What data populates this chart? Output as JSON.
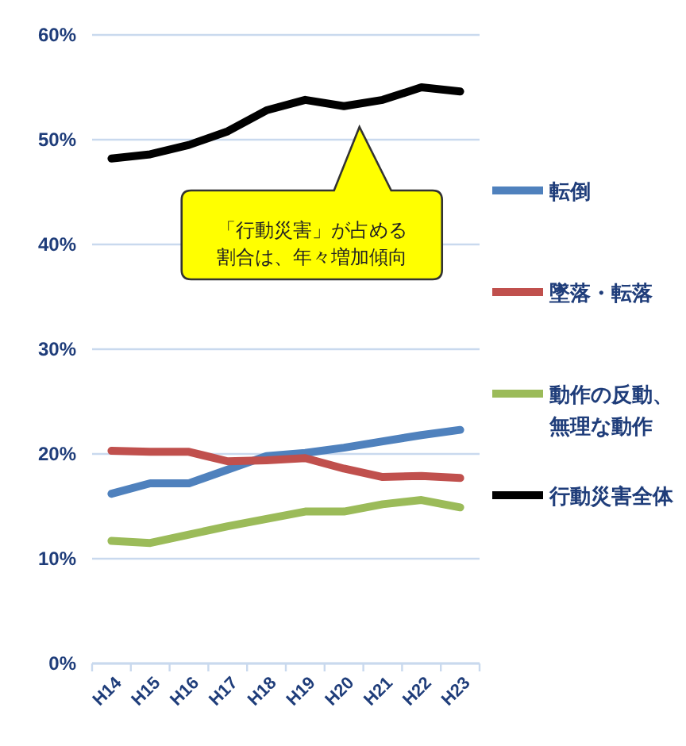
{
  "chart_data": {
    "type": "line",
    "categories": [
      "H14",
      "H15",
      "H16",
      "H17",
      "H18",
      "H19",
      "H20",
      "H21",
      "H22",
      "H23"
    ],
    "series": [
      {
        "name": "転倒",
        "color": "#4f81bd",
        "values": [
          16.2,
          17.2,
          17.2,
          18.5,
          19.8,
          20.1,
          20.6,
          21.2,
          21.8,
          22.3
        ]
      },
      {
        "name": "墜落・転落",
        "color": "#c0504d",
        "values": [
          20.3,
          20.2,
          20.2,
          19.3,
          19.4,
          19.6,
          18.6,
          17.8,
          17.9,
          17.7
        ]
      },
      {
        "name": "動作の反動、無理な動作",
        "color": "#9bbb59",
        "values": [
          11.7,
          11.5,
          12.3,
          13.1,
          13.8,
          14.5,
          14.5,
          15.2,
          15.6,
          14.9
        ]
      },
      {
        "name": "行動災害全体",
        "color": "#000000",
        "values": [
          48.2,
          48.6,
          49.5,
          50.8,
          52.8,
          53.8,
          53.2,
          53.8,
          55.0,
          54.6
        ]
      }
    ],
    "ylim": [
      0,
      60
    ],
    "yticks": [
      {
        "value": 0,
        "label": "0%"
      },
      {
        "value": 10,
        "label": "10%"
      },
      {
        "value": 20,
        "label": "20%"
      },
      {
        "value": 30,
        "label": "30%"
      },
      {
        "value": 40,
        "label": "40%"
      },
      {
        "value": 50,
        "label": "50%"
      },
      {
        "value": 60,
        "label": "60%"
      }
    ],
    "grid": "y",
    "legend": "right",
    "marker": "none",
    "line_style": "solid",
    "annotations": [
      "「行動災害」が占める割合は、年々増加傾向"
    ]
  }
}
